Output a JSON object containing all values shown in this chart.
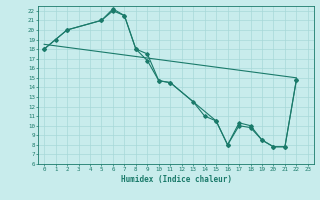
{
  "xlabel": "Humidex (Indice chaleur)",
  "bg_color": "#c8ecec",
  "grid_color": "#a8d8d8",
  "line_color": "#1a7a6a",
  "xlim": [
    -0.5,
    23.5
  ],
  "ylim": [
    6,
    22.5
  ],
  "xticks": [
    0,
    1,
    2,
    3,
    4,
    5,
    6,
    7,
    8,
    9,
    10,
    11,
    12,
    13,
    14,
    15,
    16,
    17,
    18,
    19,
    20,
    21,
    22,
    23
  ],
  "yticks": [
    6,
    7,
    8,
    9,
    10,
    11,
    12,
    13,
    14,
    15,
    16,
    17,
    18,
    19,
    20,
    21,
    22
  ],
  "series1_x": [
    0,
    1,
    2,
    5,
    6,
    7,
    8,
    9,
    10,
    11,
    13,
    14,
    15,
    16,
    17,
    18,
    19,
    20,
    21,
    22
  ],
  "series1_y": [
    18.0,
    19.0,
    20.0,
    21.0,
    22.2,
    21.5,
    18.0,
    17.5,
    14.7,
    14.5,
    12.5,
    11.0,
    10.5,
    8.0,
    10.0,
    9.8,
    8.5,
    7.8,
    7.8,
    14.8
  ],
  "series2_x": [
    0,
    2,
    5,
    6,
    7,
    8,
    9,
    10,
    11,
    15,
    16,
    17,
    18,
    19,
    20,
    21,
    22
  ],
  "series2_y": [
    18.0,
    20.0,
    21.0,
    22.0,
    21.5,
    18.0,
    16.8,
    14.7,
    14.5,
    10.5,
    8.0,
    10.3,
    10.0,
    8.5,
    7.8,
    7.8,
    14.8
  ],
  "trend_x": [
    0,
    22
  ],
  "trend_y": [
    18.5,
    15.0
  ]
}
